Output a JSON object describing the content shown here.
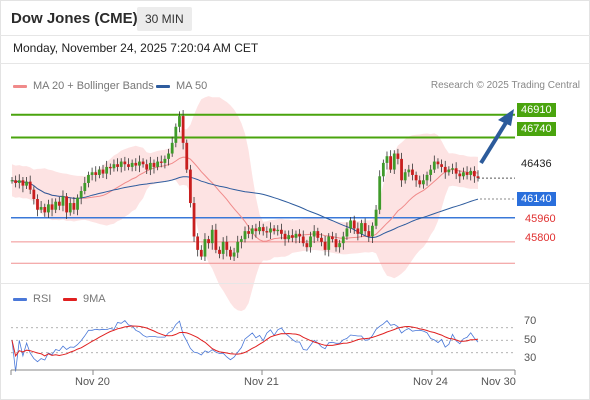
{
  "header": {
    "title": "Dow Jones (CME)",
    "timeframe": "30 MIN"
  },
  "timestamp": "Monday, November 24, 2025 7:20:04 AM CET",
  "legend": {
    "ma20": {
      "label": "MA 20 + Bollinger Bands",
      "color": "#f08a8a"
    },
    "ma50": {
      "label": "MA 50",
      "color": "#2e5c9e"
    }
  },
  "credit": "Research © 2025 Trading Central",
  "levels": {
    "r2": {
      "value": "46910",
      "color": "#4aa40e"
    },
    "r1": {
      "value": "46740",
      "color": "#4aa40e"
    },
    "last": {
      "value": "46436"
    },
    "pivot": {
      "value": "46140",
      "color": "#3a78d8"
    },
    "s1": {
      "value": "45960",
      "color": "#e03030"
    },
    "s2": {
      "value": "45800",
      "color": "#e03030"
    }
  },
  "rsi": {
    "legend_rsi": "RSI",
    "legend_9ma": "9MA",
    "rsi_color": "#4a78d8",
    "ma_color": "#e02020",
    "ticks": [
      "70",
      "50",
      "30"
    ]
  },
  "xaxis": {
    "labels": [
      "Nov 20",
      "Nov 21",
      "Nov 24",
      "Nov 30"
    ]
  },
  "chart_data": {
    "type": "candlestick",
    "ylim": [
      45600,
      47050
    ],
    "close": [
      46420,
      46400,
      46420,
      46380,
      46410,
      46350,
      46280,
      46200,
      46220,
      46180,
      46240,
      46200,
      46260,
      46230,
      46300,
      46180,
      46250,
      46200,
      46290,
      46340,
      46400,
      46460,
      46480,
      46460,
      46500,
      46470,
      46520,
      46510,
      46540,
      46520,
      46560,
      46540,
      46520,
      46550,
      46530,
      46560,
      46540,
      46500,
      46550,
      46520,
      46560,
      46550,
      46580,
      46620,
      46700,
      46820,
      46900,
      46700,
      46500,
      46250,
      46000,
      45900,
      45850,
      45980,
      45950,
      46050,
      45900,
      45870,
      45960,
      45900,
      45850,
      45880,
      45960,
      45980,
      46040,
      46020,
      46060,
      46040,
      46070,
      46040,
      46030,
      46060,
      46040,
      46050,
      46020,
      45980,
      46010,
      45990,
      46020,
      46000,
      45950,
      45920,
      46000,
      46040,
      45990,
      45960,
      45900,
      46000,
      45980,
      45920,
      45950,
      46000,
      46060,
      46120,
      46060,
      46020,
      46100,
      46040,
      46000,
      46080,
      46200,
      46450,
      46550,
      46600,
      46500,
      46620,
      46580,
      46420,
      46480,
      46500,
      46460,
      46420,
      46390,
      46420,
      46460,
      46500,
      46560,
      46540,
      46520,
      46480,
      46500,
      46510,
      46470,
      46450,
      46480,
      46460,
      46490,
      46450,
      46436
    ]
  }
}
